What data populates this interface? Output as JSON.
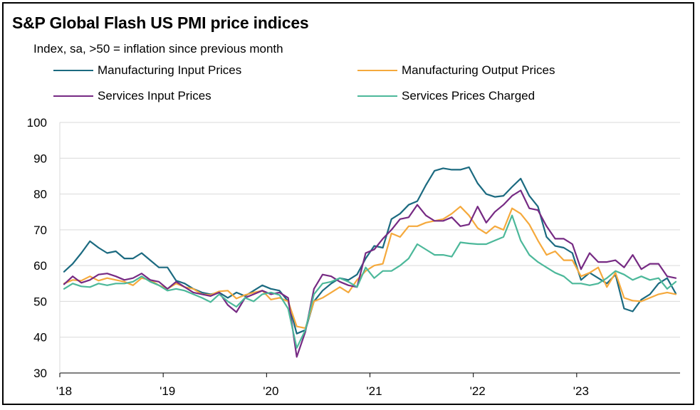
{
  "chart_data": {
    "type": "line",
    "title": "S&P Global Flash US PMI price indices",
    "subtitle": "Index, sa, >50 = inflation since previous month",
    "ylim": [
      30,
      100
    ],
    "yticks": [
      30,
      40,
      50,
      60,
      70,
      80,
      90,
      100
    ],
    "xticks": [
      "'18",
      "'19",
      "'20",
      "'21",
      "'22",
      "'23"
    ],
    "grid": "horizontal",
    "legend_placement": "top",
    "start": "2018-01",
    "series": [
      {
        "name": "Manufacturing Input Prices",
        "color": "#1b6a80",
        "values": [
          58.3,
          60.5,
          63.5,
          66.8,
          65.0,
          63.5,
          64.0,
          62.0,
          62.0,
          63.5,
          61.5,
          59.5,
          59.5,
          55.8,
          55.0,
          53.5,
          52.5,
          52.0,
          52.5,
          51.0,
          52.5,
          51.5,
          53.0,
          54.5,
          53.5,
          53.0,
          50.0,
          41.0,
          42.0,
          50.0,
          53.0,
          55.0,
          56.5,
          56.0,
          57.5,
          62.0,
          65.5,
          65.0,
          73.0,
          74.5,
          77.0,
          78.0,
          82.5,
          86.5,
          87.2,
          86.8,
          86.8,
          87.5,
          83.0,
          80.0,
          79.2,
          79.5,
          82.0,
          84.3,
          79.5,
          76.5,
          68.0,
          65.5,
          65.0,
          63.5,
          56.0,
          58.0,
          56.5,
          55.0,
          57.5,
          48.0,
          47.2,
          50.5,
          52.0,
          55.0,
          56.5,
          52.2
        ]
      },
      {
        "name": "Manufacturing Output Prices",
        "color": "#f5a93c",
        "values": [
          55.0,
          56.0,
          55.8,
          57.0,
          55.8,
          56.5,
          56.0,
          55.5,
          54.5,
          56.5,
          56.0,
          54.5,
          53.5,
          55.0,
          54.0,
          53.5,
          52.0,
          51.8,
          52.8,
          53.0,
          50.8,
          51.8,
          52.5,
          53.0,
          50.5,
          51.0,
          50.0,
          43.0,
          42.5,
          50.0,
          51.0,
          52.5,
          54.0,
          52.5,
          56.0,
          58.5,
          60.0,
          60.5,
          69.0,
          68.0,
          71.0,
          71.0,
          72.0,
          72.5,
          73.0,
          74.5,
          76.5,
          74.0,
          70.5,
          69.0,
          71.0,
          70.0,
          76.0,
          74.5,
          71.5,
          67.0,
          63.0,
          64.0,
          61.5,
          61.5,
          57.0,
          58.0,
          59.5,
          54.0,
          58.0,
          51.0,
          50.2,
          50.0,
          51.0,
          52.0,
          52.5,
          52.0
        ]
      },
      {
        "name": "Services Input Prices",
        "color": "#762a83",
        "values": [
          54.8,
          57.0,
          55.2,
          56.0,
          57.5,
          57.8,
          57.0,
          56.0,
          56.5,
          57.8,
          56.0,
          55.5,
          53.5,
          55.5,
          54.0,
          52.5,
          52.0,
          51.5,
          52.5,
          49.0,
          47.0,
          51.0,
          52.0,
          53.0,
          52.0,
          52.5,
          51.0,
          34.5,
          41.5,
          53.5,
          57.5,
          57.0,
          55.5,
          54.5,
          54.0,
          63.5,
          64.5,
          67.5,
          70.0,
          73.0,
          73.5,
          77.0,
          74.0,
          72.5,
          72.5,
          73.5,
          71.0,
          71.5,
          76.5,
          72.0,
          75.0,
          77.0,
          79.5,
          81.0,
          76.0,
          75.5,
          71.0,
          67.5,
          67.5,
          66.0,
          59.0,
          63.5,
          61.0,
          61.0,
          61.5,
          59.5,
          63.0,
          59.0,
          60.5,
          60.5,
          57.0,
          56.5
        ]
      },
      {
        "name": "Services Prices Charged",
        "color": "#4cb89a",
        "values": [
          53.5,
          55.0,
          54.2,
          54.0,
          55.0,
          54.5,
          55.0,
          55.0,
          55.5,
          57.0,
          55.5,
          54.5,
          53.0,
          53.5,
          53.0,
          52.0,
          51.0,
          49.8,
          52.0,
          50.0,
          48.5,
          51.0,
          50.0,
          52.0,
          52.5,
          51.8,
          48.0,
          37.0,
          42.0,
          52.0,
          55.0,
          55.5,
          56.5,
          55.5,
          54.0,
          59.5,
          56.5,
          58.5,
          58.5,
          60.0,
          62.0,
          66.0,
          64.5,
          63.0,
          63.0,
          62.5,
          66.5,
          66.2,
          66.0,
          66.0,
          67.0,
          68.0,
          74.0,
          67.0,
          63.0,
          61.0,
          59.5,
          58.0,
          57.0,
          55.0,
          55.0,
          54.5,
          55.0,
          56.5,
          58.5,
          57.5,
          56.0,
          57.0,
          56.0,
          56.5,
          53.5,
          55.5
        ]
      }
    ]
  }
}
